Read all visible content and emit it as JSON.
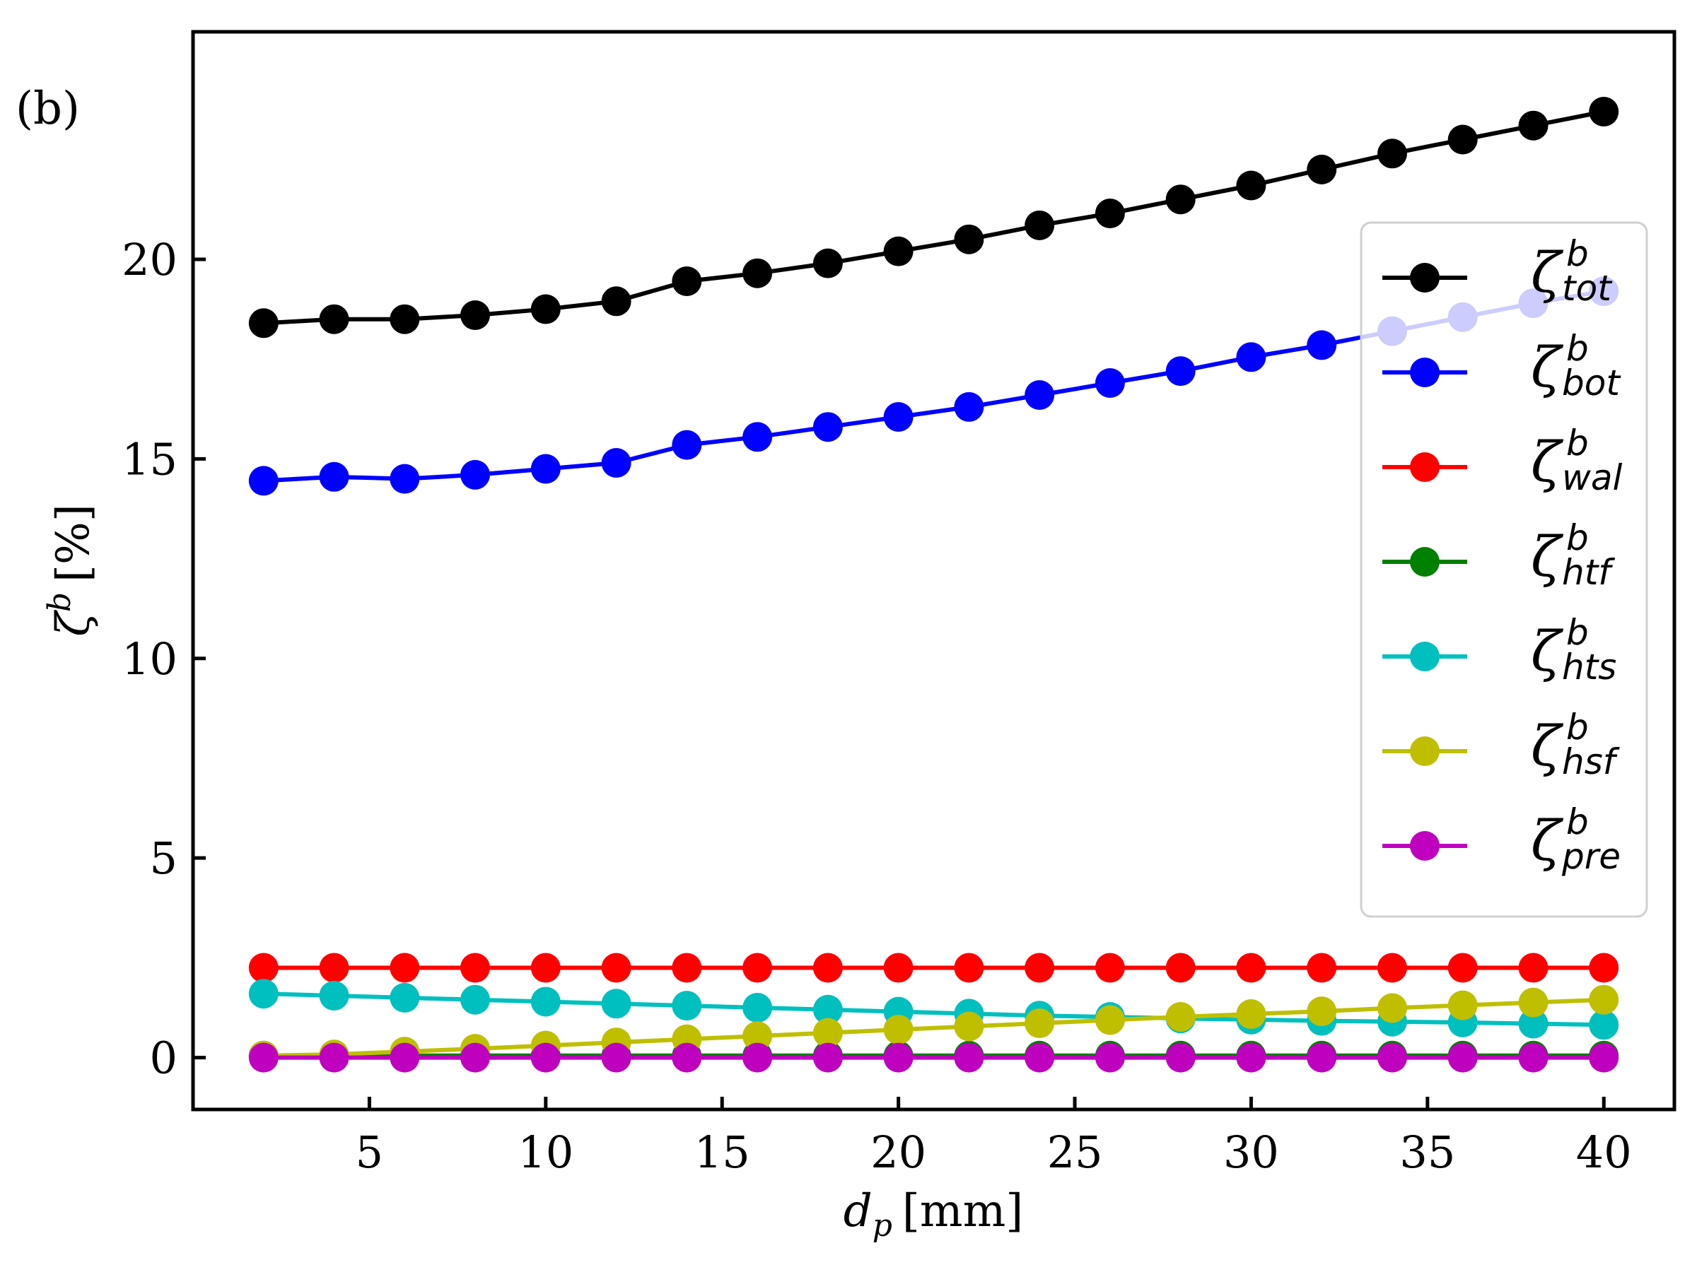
{
  "panel_label": "(b)",
  "chart_data": {
    "type": "line",
    "title": "",
    "xlabel": "d_p [mm]",
    "xlabel_main": "d",
    "xlabel_sub": "p",
    "xlabel_unit": "[mm]",
    "ylabel": "ζ^b [%]",
    "ylabel_main": "ζ",
    "ylabel_sup": "b",
    "ylabel_unit": "[%]",
    "xlim": [
      0,
      42
    ],
    "ylim": [
      -1.3,
      25.7
    ],
    "xticks": [
      5,
      10,
      15,
      20,
      25,
      30,
      35,
      40
    ],
    "xtick_labels": [
      "5",
      "10",
      "15",
      "20",
      "25",
      "30",
      "35",
      "40"
    ],
    "yticks": [
      0,
      5,
      10,
      15,
      20
    ],
    "ytick_labels": [
      "0",
      "5",
      "10",
      "15",
      "20"
    ],
    "legend_position": "center-right",
    "x": [
      2,
      4,
      6,
      8,
      10,
      12,
      14,
      16,
      18,
      20,
      22,
      24,
      26,
      28,
      30,
      32,
      34,
      36,
      38,
      40
    ],
    "series": [
      {
        "name": "ζ_tot^b",
        "symbol": "ζ",
        "sup": "b",
        "sub": "tot",
        "color": "#000000",
        "values": [
          18.4,
          18.5,
          18.5,
          18.6,
          18.75,
          18.95,
          19.45,
          19.65,
          19.9,
          20.2,
          20.5,
          20.85,
          21.15,
          21.5,
          21.85,
          22.25,
          22.65,
          23.0,
          23.35,
          23.7
        ]
      },
      {
        "name": "ζ_bot^b",
        "symbol": "ζ",
        "sup": "b",
        "sub": "bot",
        "color": "#0000ff",
        "values": [
          14.45,
          14.55,
          14.5,
          14.6,
          14.75,
          14.9,
          15.35,
          15.55,
          15.8,
          16.05,
          16.3,
          16.6,
          16.9,
          17.2,
          17.55,
          17.85,
          18.2,
          18.55,
          18.9,
          19.2
        ]
      },
      {
        "name": "ζ_wal^b",
        "symbol": "ζ",
        "sup": "b",
        "sub": "wal",
        "color": "#ff0000",
        "values": [
          2.25,
          2.25,
          2.25,
          2.25,
          2.25,
          2.25,
          2.25,
          2.25,
          2.25,
          2.25,
          2.25,
          2.25,
          2.25,
          2.25,
          2.25,
          2.25,
          2.25,
          2.25,
          2.25,
          2.25
        ]
      },
      {
        "name": "ζ_htf^b",
        "symbol": "ζ",
        "sup": "b",
        "sub": "htf",
        "color": "#008000",
        "values": [
          0.05,
          0.05,
          0.05,
          0.05,
          0.05,
          0.05,
          0.05,
          0.05,
          0.05,
          0.05,
          0.05,
          0.05,
          0.05,
          0.05,
          0.05,
          0.05,
          0.05,
          0.05,
          0.05,
          0.05
        ]
      },
      {
        "name": "ζ_hts^b",
        "symbol": "ζ",
        "sup": "b",
        "sub": "hts",
        "color": "#00bfbf",
        "values": [
          1.6,
          1.55,
          1.5,
          1.45,
          1.4,
          1.35,
          1.3,
          1.25,
          1.2,
          1.15,
          1.1,
          1.05,
          1.02,
          0.98,
          0.95,
          0.92,
          0.9,
          0.88,
          0.85,
          0.82
        ]
      },
      {
        "name": "ζ_hsf^b",
        "symbol": "ζ",
        "sup": "b",
        "sub": "hsf",
        "color": "#bfbf00",
        "values": [
          0.05,
          0.08,
          0.15,
          0.22,
          0.3,
          0.38,
          0.46,
          0.54,
          0.62,
          0.7,
          0.78,
          0.86,
          0.94,
          1.02,
          1.09,
          1.16,
          1.24,
          1.31,
          1.38,
          1.45
        ]
      },
      {
        "name": "ζ_pre^b",
        "symbol": "ζ",
        "sup": "b",
        "sub": "pre",
        "color": "#bf00bf",
        "values": [
          0.0,
          0.0,
          0.0,
          0.0,
          0.0,
          0.0,
          0.0,
          0.0,
          0.0,
          0.0,
          0.0,
          0.0,
          0.0,
          0.0,
          0.0,
          0.0,
          0.0,
          0.0,
          0.0,
          0.0
        ]
      }
    ]
  }
}
